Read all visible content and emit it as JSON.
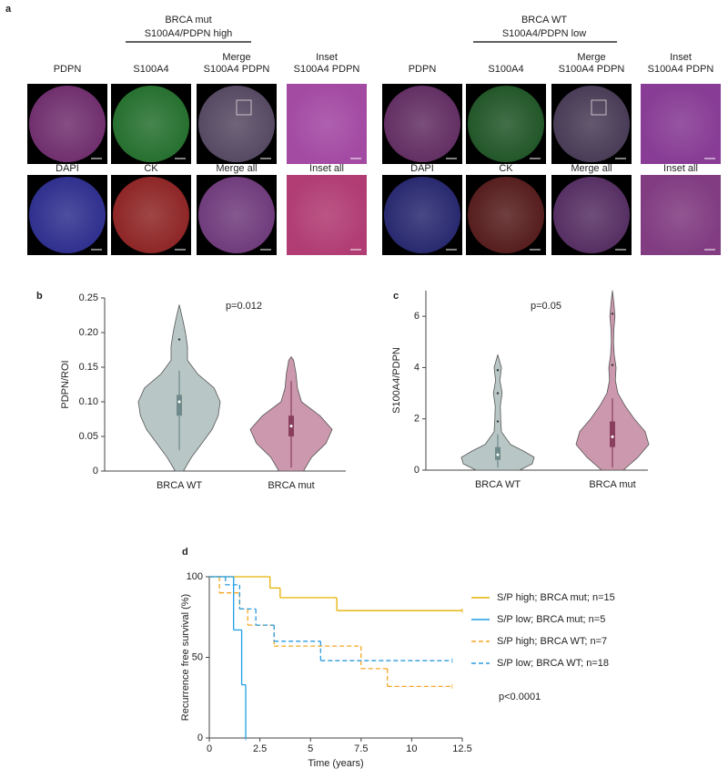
{
  "panel_a": {
    "letter": "a",
    "groups": [
      {
        "title": "BRCA mut",
        "subtitle": "S100A4/PDPN high",
        "row1": [
          [
            "PDPN"
          ],
          [
            "S100A4"
          ],
          [
            "Merge",
            "S100A4 PDPN"
          ],
          [
            "Inset",
            "S100A4 PDPN"
          ]
        ],
        "row2": [
          [
            "DAPI"
          ],
          [
            "CK"
          ],
          [
            "Merge all"
          ],
          [
            "Inset all"
          ]
        ]
      },
      {
        "title": "BRCA WT",
        "subtitle": "S100A4/PDPN low",
        "row1": [
          [
            "PDPN"
          ],
          [
            "S100A4"
          ],
          [
            "Merge",
            "S100A4 PDPN"
          ],
          [
            "Inset",
            "S100A4 PDPN"
          ]
        ],
        "row2": [
          [
            "DAPI"
          ],
          [
            "CK"
          ],
          [
            "Merge all"
          ],
          [
            "Inset all"
          ]
        ]
      }
    ]
  },
  "chart_data": [
    {
      "type": "violin",
      "letter": "b",
      "ylabel": "PDPN/ROI",
      "annotation": "p=0.012",
      "categories": [
        "BRCA WT",
        "BRCA mut"
      ],
      "ylim": [
        0,
        0.25
      ],
      "yticks": [
        0,
        0.05,
        {
          "value": 0.1,
          "label": "0.10"
        },
        0.15,
        {
          "value": 0.2,
          "label": "0.20"
        },
        0.25
      ],
      "violins": [
        {
          "color": "#b9c6c6",
          "box_color": "#6f8a8a",
          "q1": 0.08,
          "median": 0.1,
          "q3": 0.11,
          "whisker": [
            0.03,
            0.145
          ],
          "points": [
            0.19
          ],
          "density": {
            "y": [
              0,
              0.02,
              0.04,
              0.06,
              0.08,
              0.1,
              0.12,
              0.14,
              0.16,
              0.18,
              0.2,
              0.22,
              0.24
            ],
            "width": [
              0.1,
              0.3,
              0.55,
              0.8,
              0.95,
              1,
              0.85,
              0.45,
              0.2,
              0.2,
              0.15,
              0.08,
              0
            ]
          }
        },
        {
          "color": "#cc98ad",
          "box_color": "#8a3e5e",
          "q1": 0.05,
          "median": 0.065,
          "q3": 0.08,
          "whisker": [
            0.005,
            0.13
          ],
          "points": [],
          "density": {
            "y": [
              0,
              0.02,
              0.04,
              0.06,
              0.08,
              0.1,
              0.12,
              0.14,
              0.16,
              0.165
            ],
            "width": [
              0.3,
              0.5,
              0.85,
              1,
              0.7,
              0.25,
              0.15,
              0.12,
              0.06,
              0
            ]
          }
        }
      ]
    },
    {
      "type": "violin",
      "letter": "c",
      "ylabel": "S100A4/PDPN",
      "annotation": "p=0.05",
      "categories": [
        "BRCA WT",
        "BRCA mut"
      ],
      "ylim": [
        0,
        7
      ],
      "yticks": [
        0,
        2,
        4,
        6
      ],
      "violins": [
        {
          "color": "#b9c6c6",
          "box_color": "#6f8a8a",
          "q1": 0.4,
          "median": 0.6,
          "q3": 0.9,
          "whisker": [
            0.1,
            1.4
          ],
          "points": [
            1.9,
            3,
            3.9
          ],
          "density": {
            "y": [
              0,
              0.25,
              0.5,
              0.75,
              1,
              1.5,
              2,
              2.5,
              3,
              3.5,
              4,
              4.5
            ],
            "width": [
              0.6,
              0.95,
              1,
              0.7,
              0.35,
              0.1,
              0.08,
              0.07,
              0.12,
              0.06,
              0.1,
              0
            ]
          }
        },
        {
          "color": "#cc98ad",
          "box_color": "#8a3e5e",
          "q1": 0.9,
          "median": 1.3,
          "q3": 1.9,
          "whisker": [
            0.1,
            2.8
          ],
          "points": [
            4.1,
            6.1
          ],
          "density": {
            "y": [
              0,
              0.5,
              1,
              1.5,
              2,
              2.5,
              3,
              3.5,
              4,
              4.5,
              5,
              5.5,
              6,
              6.5,
              7
            ],
            "width": [
              0.3,
              0.7,
              1,
              0.9,
              0.6,
              0.35,
              0.15,
              0.08,
              0.1,
              0.05,
              0.03,
              0.04,
              0.07,
              0.04,
              0
            ]
          }
        }
      ]
    },
    {
      "type": "step",
      "letter": "d",
      "xlabel": "Time (years)",
      "ylabel": "Recurrence free survival (%)",
      "annotation": "p<0.0001",
      "xlim": [
        0,
        12.5
      ],
      "xticks": [
        0,
        2.5,
        5,
        7.5,
        10,
        12.5
      ],
      "ylim": [
        0,
        100
      ],
      "yticks": [
        0,
        50,
        100
      ],
      "series": [
        {
          "name": "S/P high; BRCA mut; n=15",
          "color": "#e6b000",
          "dashed": false,
          "x": [
            0,
            3,
            3.5,
            6.3,
            12.5
          ],
          "values": [
            100,
            93,
            87,
            79,
            79
          ]
        },
        {
          "name": "S/P low; BRCA mut; n=5",
          "color": "#1e9fe6",
          "dashed": false,
          "x": [
            0,
            1.2,
            1.6,
            1.8
          ],
          "values": [
            100,
            67,
            33,
            0
          ]
        },
        {
          "name": "S/P high; BRCA WT; n=7",
          "color": "#f5a623",
          "dashed": true,
          "x": [
            0,
            0.5,
            1.5,
            1.9,
            3.2,
            7.5,
            8.8,
            12
          ],
          "values": [
            100,
            90,
            80,
            70,
            57,
            43,
            32,
            32
          ]
        },
        {
          "name": "S/P low; BRCA WT; n=18",
          "color": "#2a9be0",
          "dashed": true,
          "x": [
            0,
            0.8,
            1.5,
            2.3,
            3.2,
            5.5,
            12
          ],
          "values": [
            100,
            95,
            80,
            70,
            60,
            48,
            48
          ]
        }
      ]
    }
  ]
}
